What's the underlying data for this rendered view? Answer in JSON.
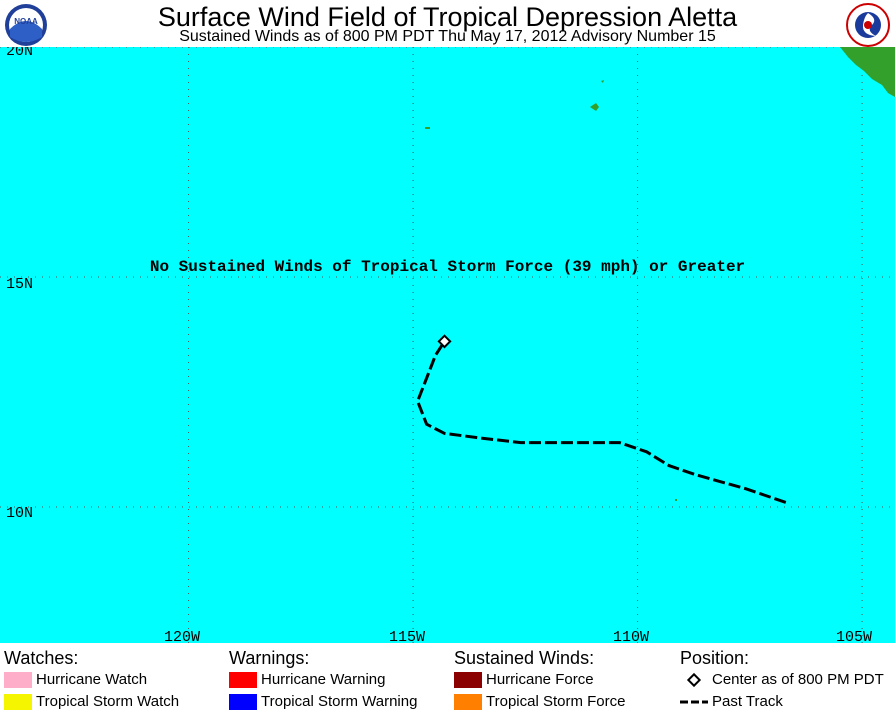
{
  "header": {
    "title": "Surface Wind Field of Tropical Depression Aletta",
    "subtitle": "Sustained Winds as of 800 PM PDT Thu May 17, 2012   Advisory Number 15"
  },
  "logos": {
    "left": "noaa-logo",
    "right": "nws-logo"
  },
  "map": {
    "lat_labels": [
      "20N",
      "15N",
      "10N"
    ],
    "lon_labels": [
      "120W",
      "115W",
      "110W",
      "105W"
    ],
    "message": "No Sustained Winds of Tropical Storm Force (39 mph) or Greater",
    "colors": {
      "ocean": "#00ffff",
      "land": "#33a02c",
      "grid": "#555555",
      "track": "#000000"
    },
    "storm": {
      "center": {
        "lat": 13.6,
        "lon": -114.3
      },
      "past_track": [
        {
          "lat": 10.1,
          "lon": -106.7
        },
        {
          "lat": 10.4,
          "lon": -107.6
        },
        {
          "lat": 10.7,
          "lon": -108.7
        },
        {
          "lat": 10.9,
          "lon": -109.3
        },
        {
          "lat": 11.2,
          "lon": -109.8
        },
        {
          "lat": 11.4,
          "lon": -110.4
        },
        {
          "lat": 11.4,
          "lon": -111.5
        },
        {
          "lat": 11.4,
          "lon": -112.6
        },
        {
          "lat": 11.5,
          "lon": -113.5
        },
        {
          "lat": 11.6,
          "lon": -114.3
        },
        {
          "lat": 11.8,
          "lon": -114.7
        },
        {
          "lat": 12.3,
          "lon": -114.9
        },
        {
          "lat": 12.8,
          "lon": -114.7
        },
        {
          "lat": 13.3,
          "lon": -114.5
        },
        {
          "lat": 13.6,
          "lon": -114.3
        }
      ]
    }
  },
  "legend": {
    "watches": {
      "heading": "Watches:",
      "items": [
        {
          "label": "Hurricane Watch",
          "color": "#ffaec9"
        },
        {
          "label": "Tropical Storm Watch",
          "color": "#f5f500"
        }
      ]
    },
    "warnings": {
      "heading": "Warnings:",
      "items": [
        {
          "label": "Hurricane Warning",
          "color": "#ff0000"
        },
        {
          "label": "Tropical Storm Warning",
          "color": "#0000ff"
        }
      ]
    },
    "winds": {
      "heading": "Sustained Winds:",
      "items": [
        {
          "label": "Hurricane Force",
          "color": "#8b0000"
        },
        {
          "label": "Tropical Storm Force",
          "color": "#ff8000"
        }
      ]
    },
    "position": {
      "heading": "Position:",
      "items": [
        {
          "label": "Center as of 800 PM PDT",
          "icon": "diamond-icon"
        },
        {
          "label": "Past Track",
          "icon": "dashed-line-icon"
        }
      ]
    }
  }
}
